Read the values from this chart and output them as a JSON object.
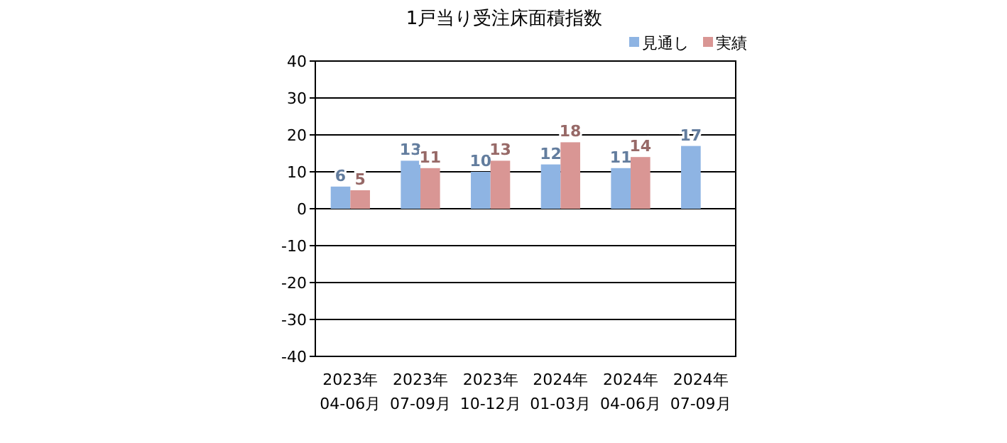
{
  "chart_data": {
    "type": "bar",
    "title": "1戸当り受注床面積指数",
    "categories": [
      "2023年\n04-06月",
      "2023年\n07-09月",
      "2023年\n10-12月",
      "2024年\n01-03月",
      "2024年\n04-06月",
      "2024年\n07-09月"
    ],
    "series": [
      {
        "name": "見通し",
        "color": "#8eb4e3",
        "values": [
          6,
          13,
          10,
          12,
          11,
          17
        ]
      },
      {
        "name": "実績",
        "color": "#d99694",
        "values": [
          5,
          11,
          13,
          18,
          14,
          null
        ]
      }
    ],
    "ylim": [
      -40,
      40
    ],
    "yticks": [
      -40,
      -30,
      -20,
      -10,
      0,
      10,
      20,
      30,
      40
    ],
    "grid": "y",
    "legend": "top right",
    "data_labels": true
  }
}
